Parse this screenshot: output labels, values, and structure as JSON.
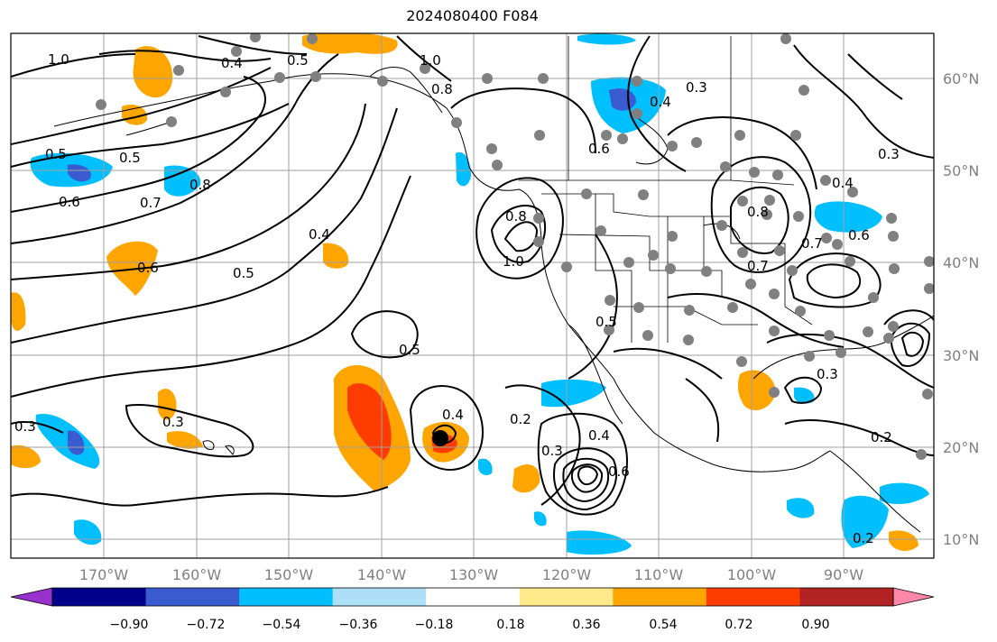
{
  "title": "2024080400 F084",
  "latitude_labels": [
    "60°N",
    "50°N",
    "40°N",
    "30°N",
    "20°N",
    "10°N"
  ],
  "longitude_labels": [
    "170°W",
    "160°W",
    "150°W",
    "140°W",
    "130°W",
    "120°W",
    "110°W",
    "100°W",
    "90°W"
  ],
  "colorbar": {
    "tick_labels": [
      "−0.90",
      "−0.72",
      "−0.54",
      "−0.36",
      "−0.18",
      "0.18",
      "0.36",
      "0.54",
      "0.72",
      "0.90"
    ],
    "colors": [
      "#9932CC",
      "#00008B",
      "#3A5BD0",
      "#00BFFF",
      "#ADDFF7",
      "#FFFFFF",
      "#FFE98A",
      "#FFA500",
      "#FF3C00",
      "#B22222",
      "#FF88AA"
    ]
  },
  "contour_labels": [
    "1.0",
    "0.4",
    "0.5",
    "1.0",
    "0.8",
    "0.3",
    "0.4",
    "0.5",
    "0.6",
    "0.5",
    "0.6",
    "0.7",
    "0.8",
    "0.4",
    "0.6",
    "0.5",
    "0.8",
    "1.0",
    "0.5",
    "0.3",
    "0.4",
    "0.2",
    "0.3",
    "0.4",
    "0.6",
    "0.3",
    "0.3",
    "0.2",
    "0.2",
    "0.7",
    "0.6",
    "0.8",
    "0.7",
    "0.5",
    "0.3",
    "0.4"
  ],
  "storm_marker": "tropical cyclone center"
}
